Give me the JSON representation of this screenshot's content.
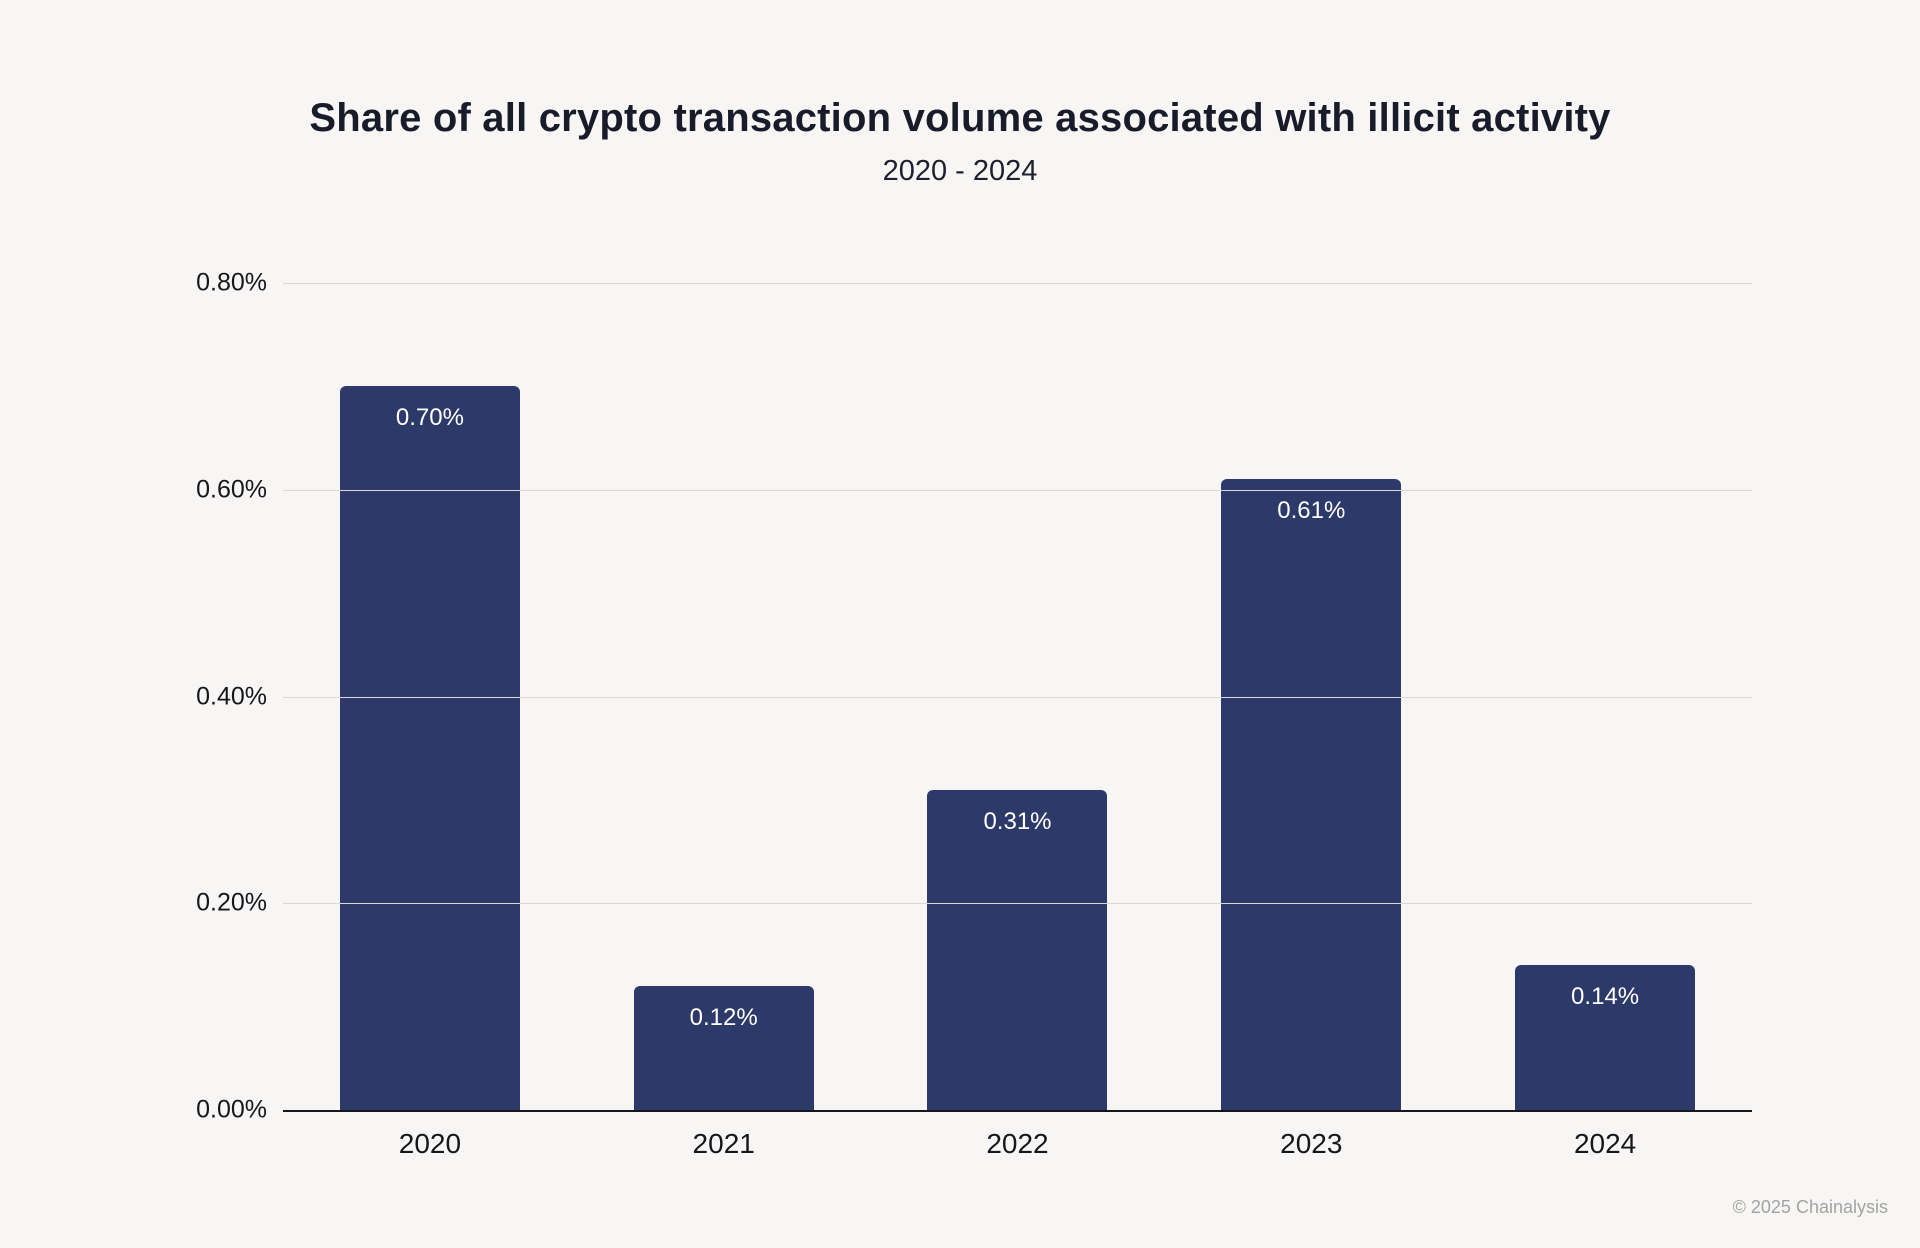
{
  "chart_data": {
    "type": "bar",
    "title": "Share of all crypto transaction volume associated with illicit activity",
    "subtitle": "2020 - 2024",
    "categories": [
      "2020",
      "2021",
      "2022",
      "2023",
      "2024"
    ],
    "values": [
      0.7,
      0.12,
      0.31,
      0.61,
      0.14
    ],
    "value_labels": [
      "0.70%",
      "0.12%",
      "0.31%",
      "0.61%",
      "0.14%"
    ],
    "xlabel": "",
    "ylabel": "",
    "ylim": [
      0,
      0.8
    ],
    "yticks": [
      {
        "value": 0.0,
        "label": "0.00%"
      },
      {
        "value": 0.2,
        "label": "0.20%"
      },
      {
        "value": 0.4,
        "label": "0.40%"
      },
      {
        "value": 0.6,
        "label": "0.60%"
      },
      {
        "value": 0.8,
        "label": "0.80%"
      }
    ],
    "grid": true,
    "legend": false,
    "bar_color": "#2d3a69",
    "value_label_color": "#ffffff"
  },
  "footer": {
    "copyright": "© 2025 Chainalysis"
  }
}
